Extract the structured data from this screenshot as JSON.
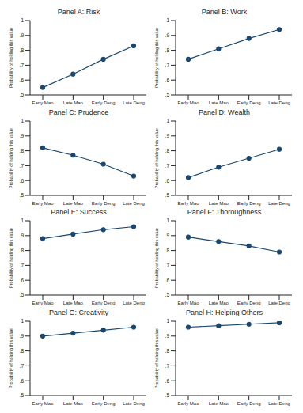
{
  "chart_data": [
    {
      "type": "line",
      "title": "Panel A: Risk",
      "y_label": "Probability of holding this value",
      "categories": [
        "Early Mao",
        "Late Mao",
        "Early Deng",
        "Late Deng"
      ],
      "values": [
        0.55,
        0.64,
        0.74,
        0.83
      ],
      "color": "#1a476f",
      "marker": "circle",
      "grid": false,
      "ylim": [
        0.5,
        1
      ],
      "yticks": [
        {
          "value": 0.5,
          "label": ".5"
        },
        {
          "value": 0.6,
          "label": ".6"
        },
        {
          "value": 0.7,
          "label": ".7"
        },
        {
          "value": 0.8,
          "label": ".8"
        },
        {
          "value": 0.9,
          "label": ".9"
        },
        1
      ]
    },
    {
      "type": "line",
      "title": "Panel B: Work",
      "y_label": "Probability of holding this value",
      "categories": [
        "Early Mao",
        "Late Mao",
        "Early Deng",
        "Late Deng"
      ],
      "values": [
        0.74,
        0.81,
        0.88,
        0.94
      ],
      "color": "#1a476f",
      "marker": "circle",
      "grid": false,
      "ylim": [
        0.5,
        1
      ],
      "yticks": [
        {
          "value": 0.5,
          "label": ".5"
        },
        {
          "value": 0.6,
          "label": ".6"
        },
        {
          "value": 0.7,
          "label": ".7"
        },
        {
          "value": 0.8,
          "label": ".8"
        },
        {
          "value": 0.9,
          "label": ".9"
        },
        1
      ]
    },
    {
      "type": "line",
      "title": "Panel C: Prudence",
      "y_label": "Probability of holding this value",
      "categories": [
        "Early Mao",
        "Late Mao",
        "Early Deng",
        "Late Deng"
      ],
      "values": [
        0.82,
        0.77,
        0.71,
        0.63
      ],
      "color": "#1a476f",
      "marker": "circle",
      "grid": false,
      "ylim": [
        0.5,
        1
      ],
      "yticks": [
        {
          "value": 0.5,
          "label": ".5"
        },
        {
          "value": 0.6,
          "label": ".6"
        },
        {
          "value": 0.7,
          "label": ".7"
        },
        {
          "value": 0.8,
          "label": ".8"
        },
        {
          "value": 0.9,
          "label": ".9"
        },
        1
      ]
    },
    {
      "type": "line",
      "title": "Panel D: Wealth",
      "y_label": "Probability of holding this value",
      "categories": [
        "Early Mao",
        "Late Mao",
        "Early Deng",
        "Late Deng"
      ],
      "values": [
        0.62,
        0.69,
        0.75,
        0.81
      ],
      "color": "#1a476f",
      "marker": "circle",
      "grid": false,
      "ylim": [
        0.5,
        1
      ],
      "yticks": [
        {
          "value": 0.5,
          "label": ".5"
        },
        {
          "value": 0.6,
          "label": ".6"
        },
        {
          "value": 0.7,
          "label": ".7"
        },
        {
          "value": 0.8,
          "label": ".8"
        },
        {
          "value": 0.9,
          "label": ".9"
        },
        1
      ]
    },
    {
      "type": "line",
      "title": "Panel E: Success",
      "y_label": "Probability of holding this value",
      "categories": [
        "Early Mao",
        "Late Mao",
        "Early Deng",
        "Late Deng"
      ],
      "values": [
        0.88,
        0.91,
        0.94,
        0.96
      ],
      "color": "#1a476f",
      "marker": "circle",
      "grid": false,
      "ylim": [
        0.5,
        1
      ],
      "yticks": [
        {
          "value": 0.5,
          "label": ".5"
        },
        {
          "value": 0.6,
          "label": ".6"
        },
        {
          "value": 0.7,
          "label": ".7"
        },
        {
          "value": 0.8,
          "label": ".8"
        },
        {
          "value": 0.9,
          "label": ".9"
        },
        1
      ]
    },
    {
      "type": "line",
      "title": "Panel F: Thoroughness",
      "y_label": "Probability of holding this value",
      "categories": [
        "Early Mao",
        "Late Mao",
        "Early Deng",
        "Late Deng"
      ],
      "values": [
        0.89,
        0.86,
        0.83,
        0.79
      ],
      "color": "#1a476f",
      "marker": "circle",
      "grid": false,
      "ylim": [
        0.5,
        1
      ],
      "yticks": [
        {
          "value": 0.5,
          "label": ".5"
        },
        {
          "value": 0.6,
          "label": ".6"
        },
        {
          "value": 0.7,
          "label": ".7"
        },
        {
          "value": 0.8,
          "label": ".8"
        },
        {
          "value": 0.9,
          "label": ".9"
        },
        1
      ]
    },
    {
      "type": "line",
      "title": "Panel G: Creativity",
      "y_label": "Probability of holding this value",
      "categories": [
        "Early Mao",
        "Late Mao",
        "Early Deng",
        "Late Deng"
      ],
      "values": [
        0.9,
        0.92,
        0.94,
        0.96
      ],
      "color": "#1a476f",
      "marker": "circle",
      "grid": false,
      "ylim": [
        0.5,
        1
      ],
      "yticks": [
        {
          "value": 0.5,
          "label": ".5"
        },
        {
          "value": 0.6,
          "label": ".6"
        },
        {
          "value": 0.7,
          "label": ".7"
        },
        {
          "value": 0.8,
          "label": ".8"
        },
        {
          "value": 0.9,
          "label": ".9"
        },
        1
      ]
    },
    {
      "type": "line",
      "title": "Panel H: Helping Others",
      "y_label": "Probability of holding this value",
      "categories": [
        "Early Mao",
        "Late Mao",
        "Early Deng",
        "Late Deng"
      ],
      "values": [
        0.96,
        0.97,
        0.98,
        0.99
      ],
      "color": "#1a476f",
      "marker": "circle",
      "grid": false,
      "ylim": [
        0.5,
        1
      ],
      "yticks": [
        {
          "value": 0.5,
          "label": ".5"
        },
        {
          "value": 0.6,
          "label": ".6"
        },
        {
          "value": 0.7,
          "label": ".7"
        },
        {
          "value": 0.8,
          "label": ".8"
        },
        {
          "value": 0.9,
          "label": ".9"
        },
        1
      ]
    }
  ]
}
